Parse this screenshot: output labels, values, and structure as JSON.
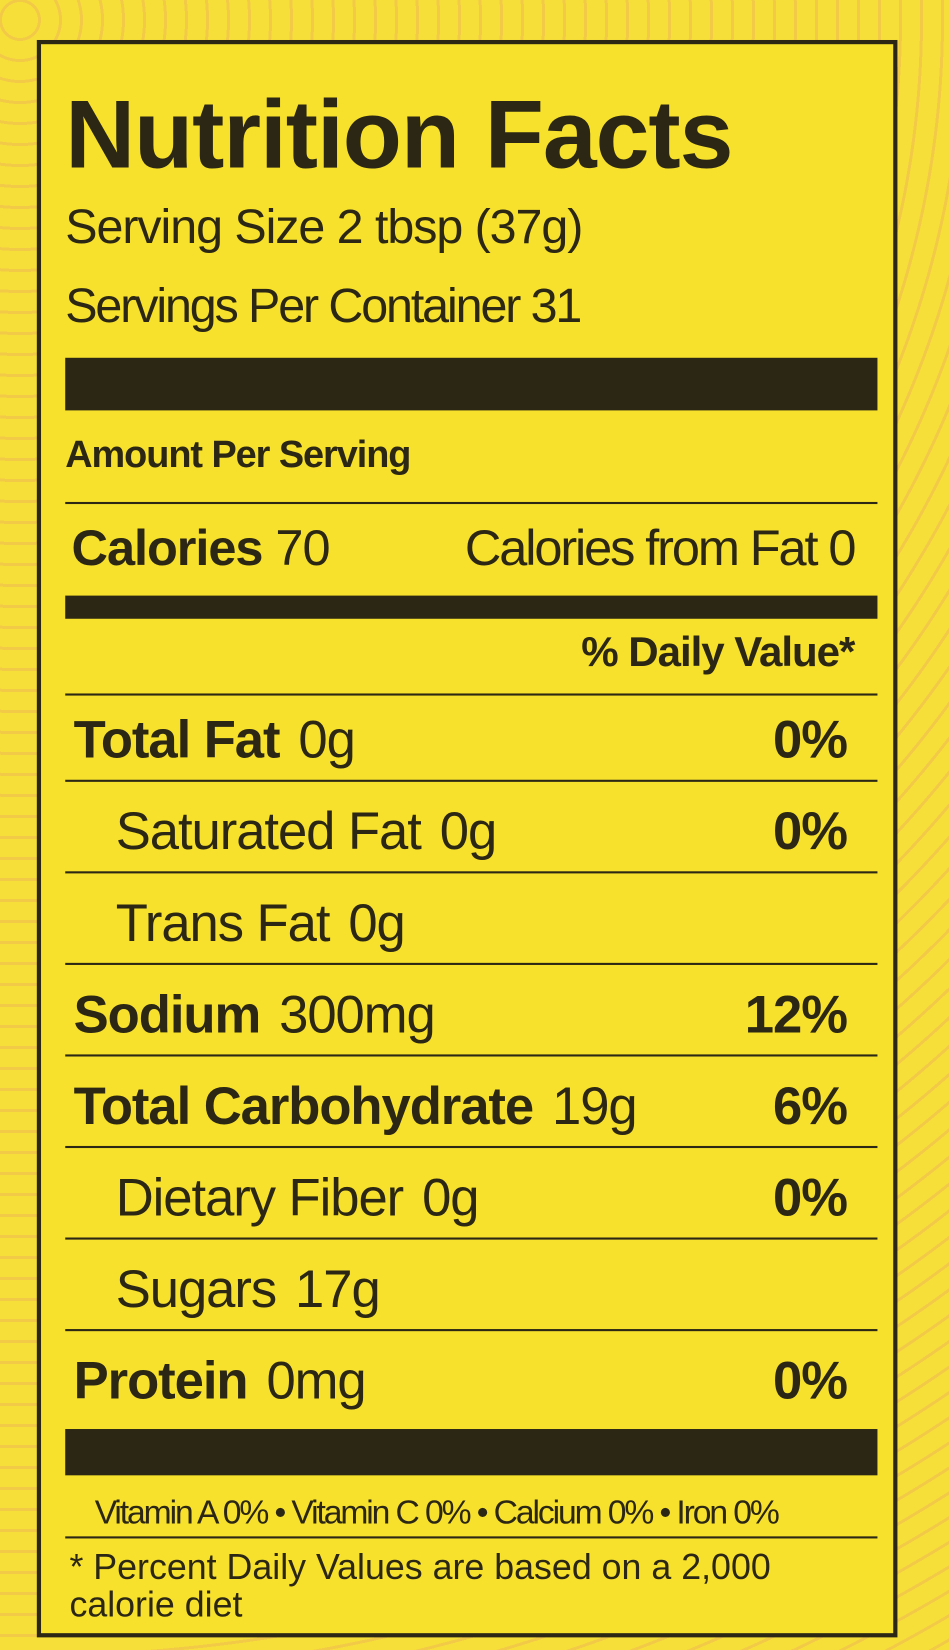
{
  "title": "Nutrition Facts",
  "serving_size": "Serving Size 2 tbsp (37g)",
  "servings_per_container": "Servings Per Container  31",
  "amount_per_serving": "Amount Per Serving",
  "calories": {
    "label": "Calories",
    "value": "70",
    "from_fat": "Calories from Fat  0"
  },
  "daily_value_header": "% Daily Value*",
  "nutrients": [
    {
      "name": "Total Fat",
      "amount": "0g",
      "dv": "0%",
      "bold": true,
      "indent": false
    },
    {
      "name": "Saturated Fat",
      "amount": "0g",
      "dv": "0%",
      "bold": false,
      "indent": true
    },
    {
      "name": "Trans Fat",
      "amount": "0g",
      "bold": false,
      "indent": true
    },
    {
      "name": "Sodium",
      "amount": "300mg",
      "dv": "12%",
      "bold": true,
      "indent": false
    },
    {
      "name": "Total Carbohydrate",
      "amount": "19g",
      "dv": "6%",
      "bold": true,
      "indent": false
    },
    {
      "name": "Dietary Fiber",
      "amount": "0g",
      "dv": "0%",
      "bold": false,
      "indent": true
    },
    {
      "name": "Sugars",
      "amount": "17g",
      "bold": false,
      "indent": true
    },
    {
      "name": "Protein",
      "amount": "0mg",
      "dv": "0%",
      "bold": true,
      "indent": false
    }
  ],
  "vitamins": "Vitamin A 0% • Vitamin C 0% • Calcium 0% • Iron 0%",
  "footnote": "* Percent Daily Values are based on a 2,000 calorie diet"
}
